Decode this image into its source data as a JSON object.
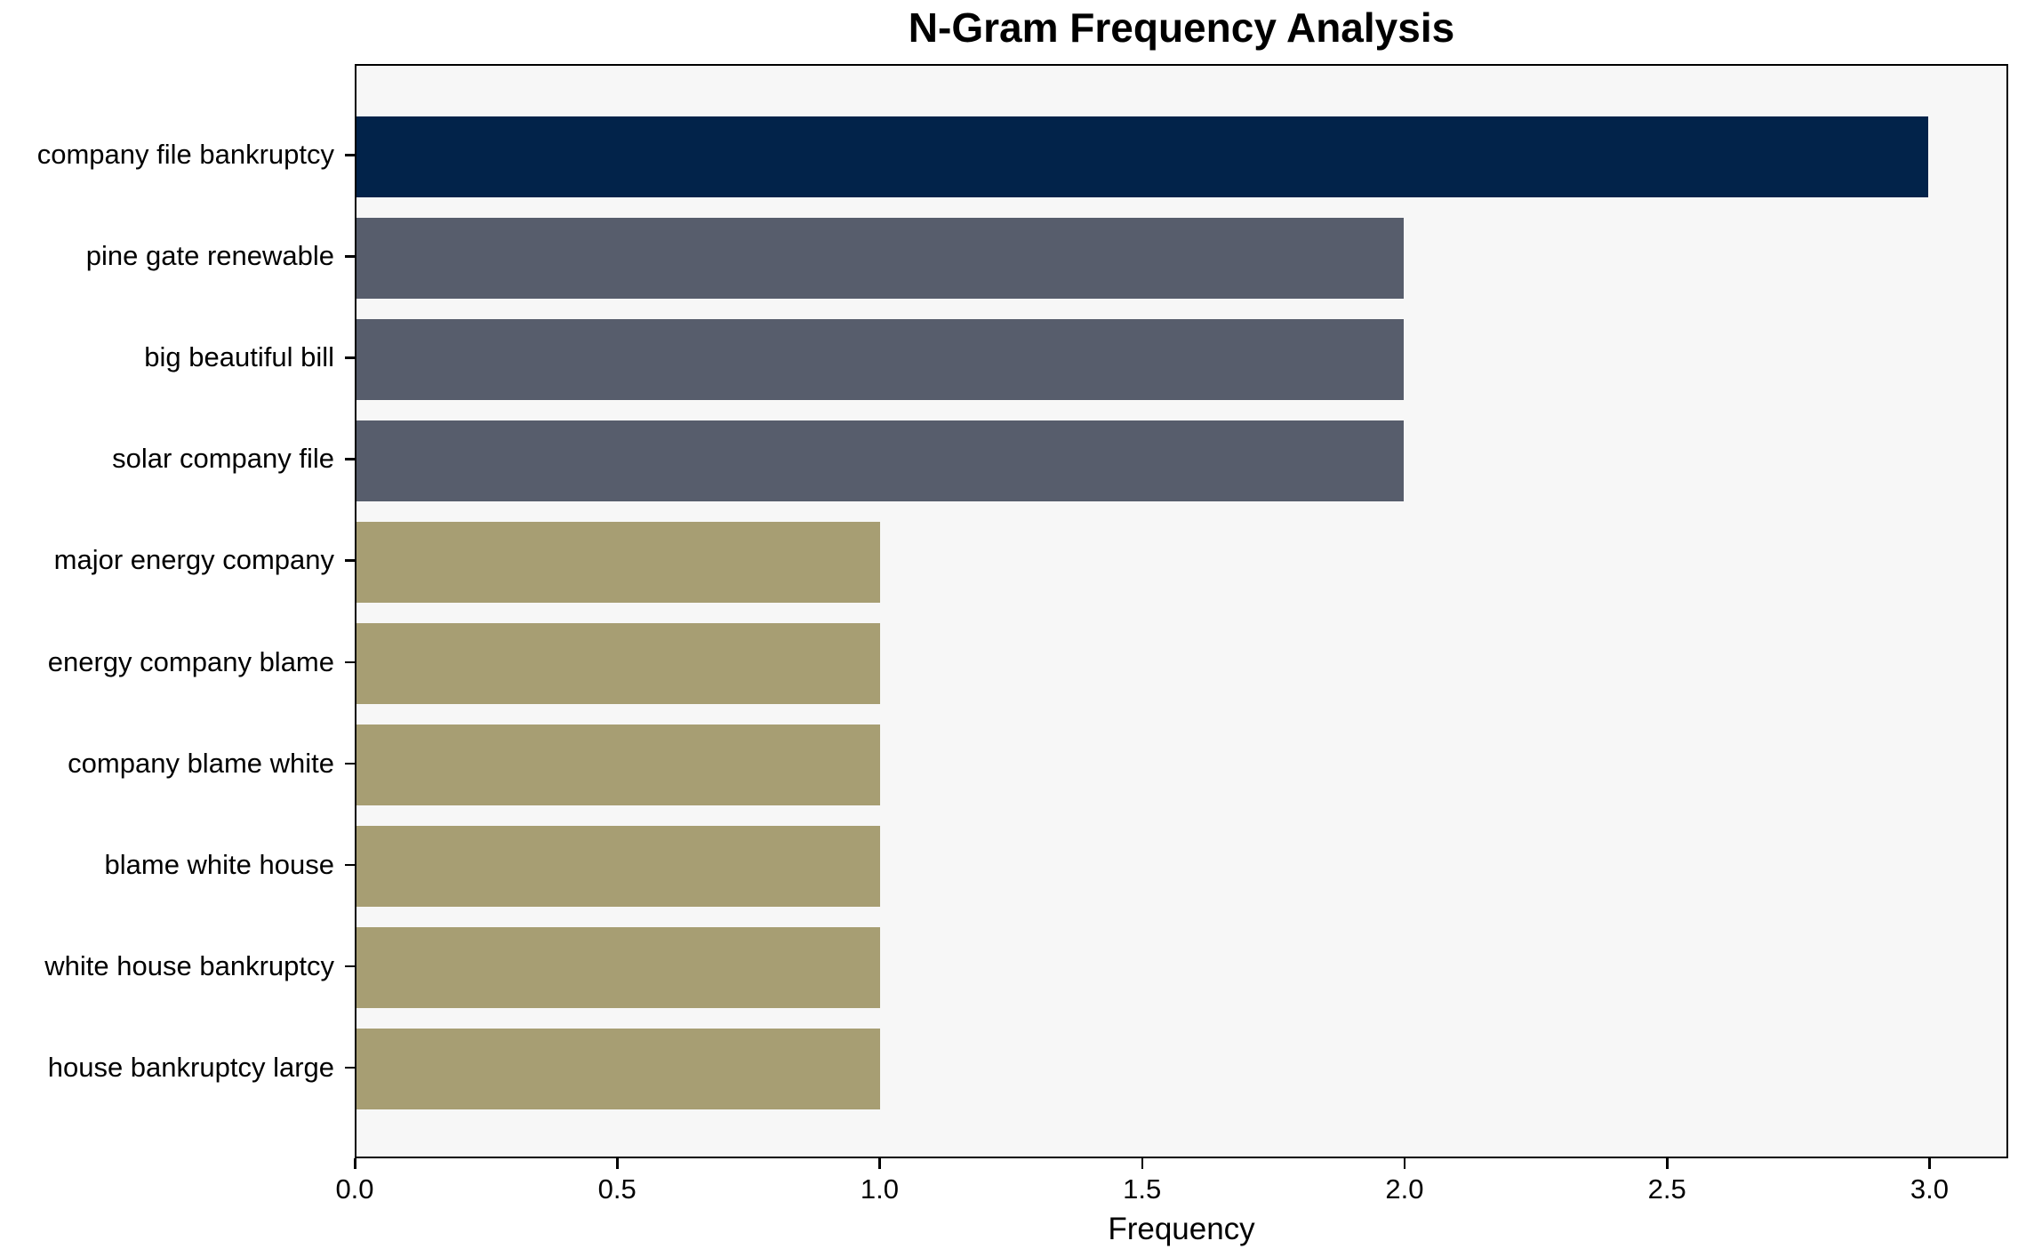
{
  "chart_data": {
    "type": "bar",
    "orientation": "horizontal",
    "title": "N-Gram Frequency Analysis",
    "xlabel": "Frequency",
    "ylabel": "",
    "categories": [
      "company file bankruptcy",
      "pine gate renewable",
      "big beautiful bill",
      "solar company file",
      "major energy company",
      "energy company blame",
      "company blame white",
      "blame white house",
      "white house bankruptcy",
      "house bankruptcy large"
    ],
    "values": [
      3,
      2,
      2,
      2,
      1,
      1,
      1,
      1,
      1,
      1
    ],
    "bar_colors": [
      "#02234a",
      "#575d6c",
      "#575d6c",
      "#575d6c",
      "#a79e73",
      "#a79e73",
      "#a79e73",
      "#a79e73",
      "#a79e73",
      "#a79e73"
    ],
    "xlim": [
      0,
      3.15
    ],
    "xticks": [
      0.0,
      0.5,
      1.0,
      1.5,
      2.0,
      2.5,
      3.0
    ],
    "xtick_labels": [
      "0.0",
      "0.5",
      "1.0",
      "1.5",
      "2.0",
      "2.5",
      "3.0"
    ],
    "grid": false,
    "legend_position": "none",
    "plot_background": "#f7f7f7",
    "figure_background": "#ffffff",
    "spine_color": "#000000",
    "text_color": "#000000"
  }
}
